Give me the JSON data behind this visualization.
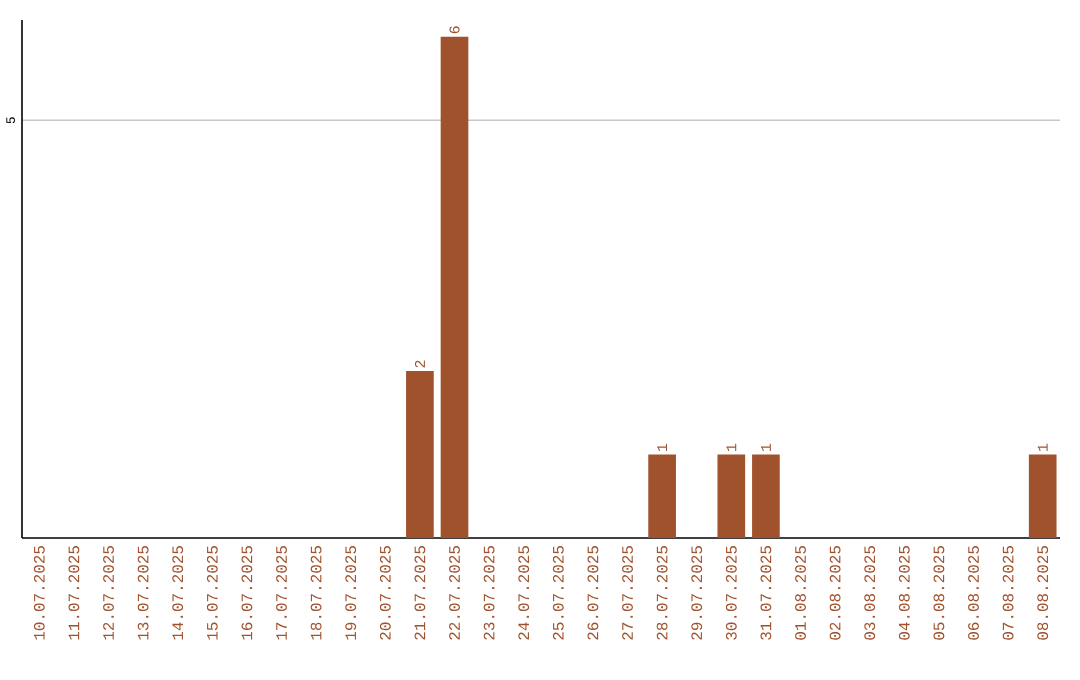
{
  "chart_data": {
    "type": "bar",
    "categories": [
      "10.07.2025",
      "11.07.2025",
      "12.07.2025",
      "13.07.2025",
      "14.07.2025",
      "15.07.2025",
      "16.07.2025",
      "17.07.2025",
      "18.07.2025",
      "19.07.2025",
      "20.07.2025",
      "21.07.2025",
      "22.07.2025",
      "23.07.2025",
      "24.07.2025",
      "25.07.2025",
      "26.07.2025",
      "27.07.2025",
      "28.07.2025",
      "29.07.2025",
      "30.07.2025",
      "31.07.2025",
      "01.08.2025",
      "02.08.2025",
      "03.08.2025",
      "04.08.2025",
      "05.08.2025",
      "06.08.2025",
      "07.08.2025",
      "08.08.2025"
    ],
    "values": [
      0,
      0,
      0,
      0,
      0,
      0,
      0,
      0,
      0,
      0,
      0,
      2,
      6,
      0,
      0,
      0,
      0,
      0,
      1,
      0,
      1,
      1,
      0,
      0,
      0,
      0,
      0,
      0,
      0,
      1
    ],
    "value_labels": [
      null,
      null,
      null,
      null,
      null,
      null,
      null,
      null,
      null,
      null,
      null,
      "2",
      "6",
      null,
      null,
      null,
      null,
      null,
      "1",
      null,
      "1",
      "1",
      null,
      null,
      null,
      null,
      null,
      null,
      null,
      "1"
    ],
    "color": "#a0522d",
    "ylim": [
      0,
      6.2
    ],
    "yticks": [
      5
    ],
    "grid": "y"
  }
}
